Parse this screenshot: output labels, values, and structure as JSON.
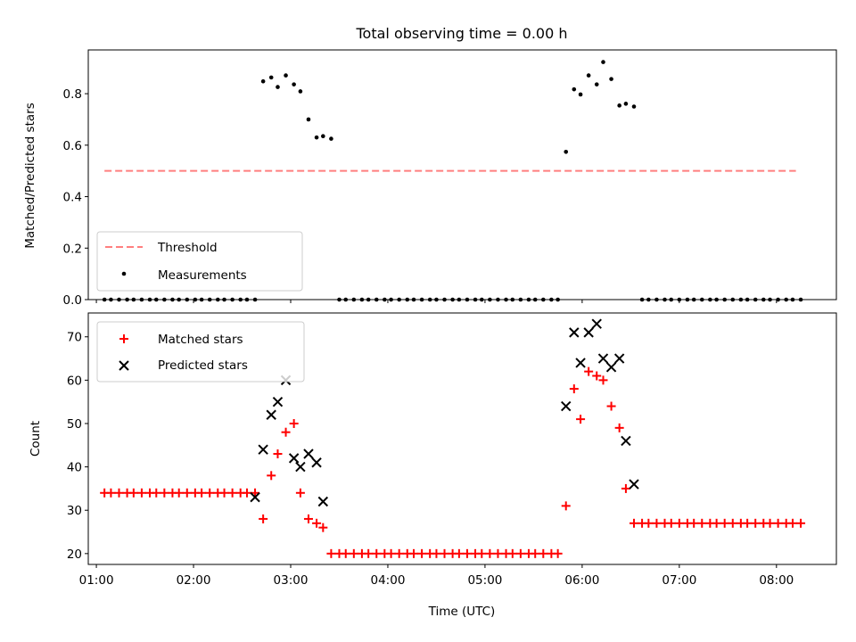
{
  "colors": {
    "threshold": "#ff7f7f",
    "measurements": "#000000",
    "matched": "#ff0000",
    "predicted": "#000000"
  },
  "chart_data": [
    {
      "type": "scatter",
      "title": "Total observing time = 0.00 h",
      "ylabel": "Matched/Predicted stars",
      "xlim": [
        "00:55",
        "08:37"
      ],
      "ylim": [
        0,
        0.97
      ],
      "yticks": [
        {
          "v": 0.0,
          "label": "0.0"
        },
        {
          "v": 0.2,
          "label": "0.2"
        },
        {
          "v": 0.4,
          "label": "0.4"
        },
        {
          "v": 0.6,
          "label": "0.6"
        },
        {
          "v": 0.8,
          "label": "0.8"
        }
      ],
      "legend": "lower-left",
      "legend_labels": [
        "Threshold",
        "Measurements"
      ],
      "threshold": {
        "name": "Threshold",
        "x": [
          "01:05",
          "08:12"
        ],
        "y": 0.5
      },
      "measurements": {
        "name": "Measurements",
        "x": [
          "01:05",
          "01:09",
          "01:14",
          "01:19",
          "01:23",
          "01:28",
          "01:33",
          "01:37",
          "01:42",
          "01:47",
          "01:51",
          "01:56",
          "02:01",
          "02:05",
          "02:10",
          "02:15",
          "02:19",
          "02:24",
          "02:29",
          "02:33",
          "02:38",
          "02:43",
          "02:48",
          "02:52",
          "02:57",
          "03:02",
          "03:06",
          "03:11",
          "03:16",
          "03:20",
          "03:25",
          "03:30",
          "03:34",
          "03:39",
          "03:44",
          "03:48",
          "03:53",
          "03:58",
          "04:02",
          "04:07",
          "04:12",
          "04:16",
          "04:21",
          "04:26",
          "04:30",
          "04:35",
          "04:40",
          "04:44",
          "04:49",
          "04:54",
          "04:58",
          "05:03",
          "05:08",
          "05:13",
          "05:17",
          "05:22",
          "05:27",
          "05:31",
          "05:36",
          "05:41",
          "05:45",
          "05:50",
          "05:55",
          "05:59",
          "06:04",
          "06:09",
          "06:13",
          "06:18",
          "06:23",
          "06:27",
          "06:32",
          "06:37",
          "06:41",
          "06:46",
          "06:51",
          "06:55",
          "07:00",
          "07:05",
          "07:09",
          "07:14",
          "07:19",
          "07:23",
          "07:28",
          "07:33",
          "07:38",
          "07:42",
          "07:47",
          "07:52",
          "07:56",
          "08:01",
          "08:06",
          "08:10",
          "08:15"
        ],
        "y": [
          0,
          0,
          0,
          0,
          0,
          0,
          0,
          0,
          0,
          0,
          0,
          0,
          0,
          0,
          0,
          0,
          0,
          0,
          0,
          0,
          0,
          0.848,
          0.863,
          0.826,
          0.871,
          0.836,
          0.809,
          0.7,
          0.63,
          0.635,
          0.625,
          0,
          0,
          0,
          0,
          0,
          0,
          0,
          0,
          0,
          0,
          0,
          0,
          0,
          0,
          0,
          0,
          0,
          0,
          0,
          0,
          0,
          0,
          0,
          0,
          0,
          0,
          0,
          0,
          0,
          0,
          0.574,
          0.817,
          0.797,
          0.871,
          0.836,
          0.923,
          0.857,
          0.754,
          0.761,
          0.75,
          0,
          0,
          0,
          0,
          0,
          0,
          0,
          0,
          0,
          0,
          0,
          0,
          0,
          0,
          0,
          0,
          0,
          0,
          0,
          0,
          0,
          0
        ]
      }
    },
    {
      "type": "scatter",
      "xlabel": "Time (UTC)",
      "ylabel": "Count",
      "xlim": [
        "00:55",
        "08:37"
      ],
      "ylim": [
        17.5,
        75.5
      ],
      "yticks": [
        {
          "v": 20,
          "label": "20"
        },
        {
          "v": 30,
          "label": "30"
        },
        {
          "v": 40,
          "label": "40"
        },
        {
          "v": 50,
          "label": "50"
        },
        {
          "v": 60,
          "label": "60"
        },
        {
          "v": 70,
          "label": "70"
        }
      ],
      "xticks": [
        {
          "v": "01:00",
          "label": "01:00"
        },
        {
          "v": "02:00",
          "label": "02:00"
        },
        {
          "v": "03:00",
          "label": "03:00"
        },
        {
          "v": "04:00",
          "label": "04:00"
        },
        {
          "v": "05:00",
          "label": "05:00"
        },
        {
          "v": "06:00",
          "label": "06:00"
        },
        {
          "v": "07:00",
          "label": "07:00"
        },
        {
          "v": "08:00",
          "label": "08:00"
        }
      ],
      "legend": "upper-left",
      "legend_labels": [
        "Matched stars",
        "Predicted stars"
      ],
      "matched": {
        "name": "Matched stars",
        "x": [
          "01:05",
          "01:09",
          "01:14",
          "01:19",
          "01:23",
          "01:28",
          "01:33",
          "01:37",
          "01:42",
          "01:47",
          "01:51",
          "01:56",
          "02:01",
          "02:05",
          "02:10",
          "02:15",
          "02:19",
          "02:24",
          "02:29",
          "02:33",
          "02:38",
          "02:43",
          "02:48",
          "02:52",
          "02:57",
          "03:02",
          "03:06",
          "03:11",
          "03:16",
          "03:20",
          "03:25",
          "03:30",
          "03:34",
          "03:39",
          "03:44",
          "03:48",
          "03:53",
          "03:58",
          "04:02",
          "04:07",
          "04:12",
          "04:16",
          "04:21",
          "04:26",
          "04:30",
          "04:35",
          "04:40",
          "04:44",
          "04:49",
          "04:54",
          "04:58",
          "05:03",
          "05:08",
          "05:13",
          "05:17",
          "05:22",
          "05:27",
          "05:31",
          "05:36",
          "05:41",
          "05:45",
          "05:50",
          "05:55",
          "05:59",
          "06:04",
          "06:09",
          "06:13",
          "06:18",
          "06:23",
          "06:27",
          "06:32",
          "06:37",
          "06:41",
          "06:46",
          "06:51",
          "06:55",
          "07:00",
          "07:05",
          "07:09",
          "07:14",
          "07:19",
          "07:23",
          "07:28",
          "07:33",
          "07:38",
          "07:42",
          "07:47",
          "07:52",
          "07:56",
          "08:01",
          "08:06",
          "08:10",
          "08:15"
        ],
        "y": [
          34,
          34,
          34,
          34,
          34,
          34,
          34,
          34,
          34,
          34,
          34,
          34,
          34,
          34,
          34,
          34,
          34,
          34,
          34,
          34,
          34,
          28,
          38,
          43,
          48,
          50,
          34,
          28,
          27,
          26,
          20,
          20,
          20,
          20,
          20,
          20,
          20,
          20,
          20,
          20,
          20,
          20,
          20,
          20,
          20,
          20,
          20,
          20,
          20,
          20,
          20,
          20,
          20,
          20,
          20,
          20,
          20,
          20,
          20,
          20,
          20,
          31,
          58,
          51,
          62,
          61,
          60,
          54,
          49,
          35,
          27,
          27,
          27,
          27,
          27,
          27,
          27,
          27,
          27,
          27,
          27,
          27,
          27,
          27,
          27,
          27,
          27,
          27,
          27,
          27,
          27,
          27,
          27
        ]
      },
      "predicted": {
        "name": "Predicted stars",
        "x": [
          "02:38",
          "02:43",
          "02:48",
          "02:52",
          "02:57",
          "03:02",
          "03:06",
          "03:11",
          "03:16",
          "03:20",
          "05:50",
          "05:55",
          "05:59",
          "06:04",
          "06:09",
          "06:13",
          "06:18",
          "06:23",
          "06:27",
          "06:32"
        ],
        "y": [
          33,
          44,
          52,
          55,
          60,
          42,
          40,
          43,
          41,
          32,
          54,
          71,
          64,
          71,
          73,
          65,
          63,
          65,
          46,
          36
        ]
      }
    }
  ]
}
